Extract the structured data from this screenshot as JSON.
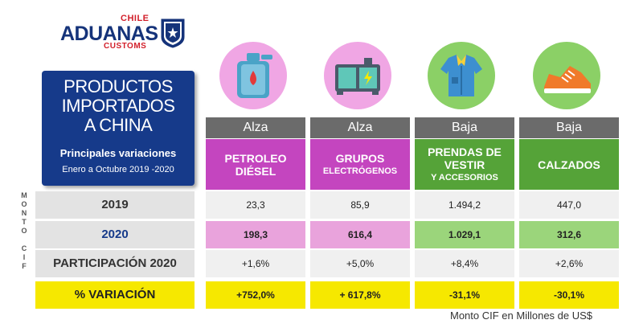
{
  "logo": {
    "top": "CHILE",
    "main": "ADUANAS",
    "bottom": "CUSTOMS"
  },
  "title": {
    "line1": "PRODUCTOS",
    "line2": "IMPORTADOS",
    "line3": "A CHINA",
    "subtitle": "Principales variaciones",
    "period": "Enero a  Octubre 2019 -2020"
  },
  "side_label": {
    "top": [
      "M",
      "O",
      "N",
      "T",
      "O"
    ],
    "bottom": [
      "C",
      "I",
      "F"
    ]
  },
  "row_labels": {
    "y2019": "2019",
    "y2020": "2020",
    "share": "PARTICIPACIÓN 2020",
    "variation": "% VARIACIÓN"
  },
  "columns": [
    {
      "trend": "Alza",
      "line1": "PETROLEO",
      "line2": "DIÉSEL",
      "line3": "",
      "icon": "fuel-can-icon",
      "v2019": "23,3",
      "v2020": "198,3",
      "share": "+1,6%",
      "variation": "+752,0%"
    },
    {
      "trend": "Alza",
      "line1": "GRUPOS",
      "line2": "ELECTRÓGENOS",
      "line3": "",
      "icon": "generator-icon",
      "v2019": "85,9",
      "v2020": "616,4",
      "share": "+5,0%",
      "variation": "+ 617,8%"
    },
    {
      "trend": "Baja",
      "line1": "PRENDAS DE",
      "line2": "VESTIR",
      "line3": "Y ACCESORIOS",
      "icon": "shirt-icon",
      "v2019": "1.494,2",
      "v2020": "1.029,1",
      "share": "+8,4%",
      "variation": "-31,1%"
    },
    {
      "trend": "Baja",
      "line1": "CALZADOS",
      "line2": "",
      "line3": "",
      "icon": "sneaker-icon",
      "v2019": "447,0",
      "v2020": "312,6",
      "share": "+2,6%",
      "variation": "-30,1%"
    }
  ],
  "footnote": "Monto CIF en Millones de US$",
  "colors": {
    "navy": "#163a8a",
    "red": "#d21f2a",
    "magenta": "#c445bf",
    "green": "#55a338",
    "yellow": "#f6e800",
    "gray": "#6b6b6b"
  }
}
